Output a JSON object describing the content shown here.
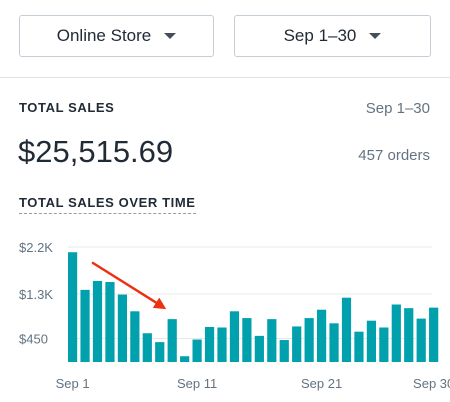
{
  "filters": {
    "channel": "Online Store",
    "date_range": "Sep 1–30"
  },
  "summary": {
    "title": "TOTAL SALES",
    "range": "Sep 1–30",
    "amount": "$25,515.69",
    "orders": "457 orders"
  },
  "chart_title": "TOTAL SALES OVER TIME",
  "chart_data": {
    "type": "bar",
    "title": "TOTAL SALES OVER TIME",
    "xlabel": "",
    "ylabel": "",
    "categories": [
      "Sep 1",
      "Sep 2",
      "Sep 3",
      "Sep 4",
      "Sep 5",
      "Sep 6",
      "Sep 7",
      "Sep 8",
      "Sep 9",
      "Sep 10",
      "Sep 11",
      "Sep 12",
      "Sep 13",
      "Sep 14",
      "Sep 15",
      "Sep 16",
      "Sep 17",
      "Sep 18",
      "Sep 19",
      "Sep 20",
      "Sep 21",
      "Sep 22",
      "Sep 23",
      "Sep 24",
      "Sep 25",
      "Sep 26",
      "Sep 27",
      "Sep 28",
      "Sep 29",
      "Sep 30"
    ],
    "values": [
      2100,
      1380,
      1550,
      1530,
      1290,
      970,
      550,
      380,
      820,
      110,
      430,
      670,
      660,
      970,
      840,
      500,
      820,
      420,
      680,
      840,
      1000,
      740,
      1230,
      580,
      790,
      660,
      1100,
      1030,
      830,
      1040
    ],
    "yticks": [
      {
        "value": 450,
        "label": "$450"
      },
      {
        "value": 1300,
        "label": "$1.3K"
      },
      {
        "value": 2200,
        "label": "$2.2K"
      }
    ],
    "xticks": [
      {
        "index": 0,
        "label": "Sep 1"
      },
      {
        "index": 10,
        "label": "Sep 11"
      },
      {
        "index": 20,
        "label": "Sep 21"
      },
      {
        "index": 29,
        "label": "Sep 30"
      }
    ],
    "ylim": [
      0,
      2200
    ],
    "grid": true,
    "bar_color": "#00a0ac",
    "annotation": {
      "type": "arrow",
      "target_index": 8,
      "color": "#ee2f12"
    }
  }
}
